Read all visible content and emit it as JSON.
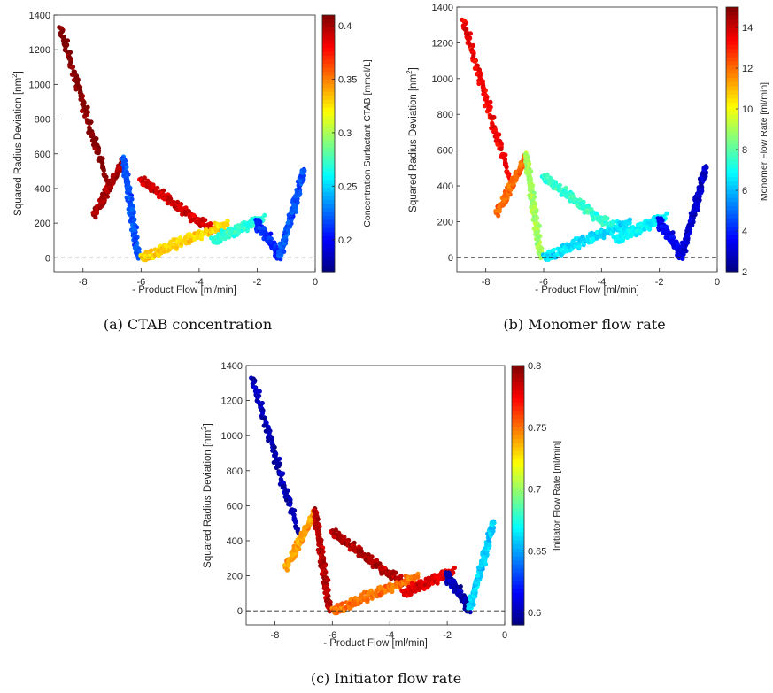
{
  "chart_data": [
    {
      "type": "scatter",
      "caption": "(a)  CTAB concentration",
      "xlabel": "- Product Flow [ml/min]",
      "ylabel": "Squared Radius Deviation [nm",
      "ylabel_sup": "2",
      "ylabel_close": "]",
      "xlim": [
        -9,
        0
      ],
      "ylim": [
        -80,
        1400
      ],
      "xticks": [
        -8,
        -6,
        -4,
        -2,
        0
      ],
      "yticks": [
        0,
        200,
        400,
        600,
        800,
        1000,
        1200,
        1400
      ],
      "reference_line": {
        "y": 0,
        "style": "dashed"
      },
      "colorbar": {
        "label": "Concentration Surfactant CTAB [mmol/L]",
        "range": [
          0.17,
          0.41
        ],
        "ticks": [
          0.2,
          0.25,
          0.3,
          0.35,
          0.4
        ]
      },
      "clusters": [
        {
          "region": "steep-left",
          "x": [
            -8.8,
            -7.2
          ],
          "y": [
            1330,
            450
          ],
          "color_value": 0.41
        },
        {
          "region": "left-blob",
          "x": [
            -7.6,
            -6.6
          ],
          "y": [
            250,
            560
          ],
          "color_value": 0.4
        },
        {
          "region": "spike-6.6",
          "x": [
            -6.6,
            -6.1
          ],
          "y": [
            570,
            0
          ],
          "color_value": 0.22
        },
        {
          "region": "mid-upper",
          "x": [
            -6.0,
            -3.5
          ],
          "y": [
            450,
            150
          ],
          "color_value": 0.39
        },
        {
          "region": "mid-lower",
          "x": [
            -6.0,
            -3.0
          ],
          "y": [
            0,
            200
          ],
          "color_value": 0.33
        },
        {
          "region": "right-band",
          "x": [
            -3.5,
            -1.8
          ],
          "y": [
            100,
            230
          ],
          "color_value": 0.27
        },
        {
          "region": "dip-1.3",
          "x": [
            -2.0,
            -1.2
          ],
          "y": [
            200,
            10
          ],
          "color_value": 0.21
        },
        {
          "region": "right-spike",
          "x": [
            -1.2,
            -0.4
          ],
          "y": [
            20,
            500
          ],
          "color_value": 0.22
        }
      ]
    },
    {
      "type": "scatter",
      "caption": "(b)  Monomer flow rate",
      "xlabel": "- Product Flow [ml/min]",
      "ylabel": "Squared Radius Deviation [nm",
      "ylabel_sup": "2",
      "ylabel_close": "]",
      "xlim": [
        -9,
        0
      ],
      "ylim": [
        -80,
        1400
      ],
      "xticks": [
        -8,
        -6,
        -4,
        -2,
        0
      ],
      "yticks": [
        0,
        200,
        400,
        600,
        800,
        1000,
        1200,
        1400
      ],
      "reference_line": {
        "y": 0,
        "style": "dashed"
      },
      "colorbar": {
        "label": "Monomer Flow Rate [ml/min]",
        "range": [
          2,
          15
        ],
        "ticks": [
          2,
          4,
          6,
          8,
          10,
          12,
          14
        ]
      },
      "clusters": [
        {
          "region": "steep-left",
          "x": [
            -8.8,
            -7.2
          ],
          "y": [
            1330,
            450
          ],
          "color_value": 13.5
        },
        {
          "region": "left-blob",
          "x": [
            -7.6,
            -6.6
          ],
          "y": [
            250,
            560
          ],
          "color_value": 12.0
        },
        {
          "region": "spike-6.6",
          "x": [
            -6.6,
            -6.1
          ],
          "y": [
            570,
            0
          ],
          "color_value": 9.0
        },
        {
          "region": "mid-upper",
          "x": [
            -6.0,
            -3.5
          ],
          "y": [
            450,
            150
          ],
          "color_value": 7.5
        },
        {
          "region": "mid-lower",
          "x": [
            -6.0,
            -3.0
          ],
          "y": [
            0,
            200
          ],
          "color_value": 6.5
        },
        {
          "region": "right-band",
          "x": [
            -3.5,
            -1.8
          ],
          "y": [
            100,
            230
          ],
          "color_value": 6.8
        },
        {
          "region": "dip-1.3",
          "x": [
            -2.0,
            -1.2
          ],
          "y": [
            200,
            10
          ],
          "color_value": 3.5
        },
        {
          "region": "right-spike",
          "x": [
            -1.2,
            -0.4
          ],
          "y": [
            20,
            500
          ],
          "color_value": 3.0
        }
      ]
    },
    {
      "type": "scatter",
      "caption": "(c)  Initiator flow rate",
      "xlabel": "- Product Flow [ml/min]",
      "ylabel": "Squared Radius Deviation [nm",
      "ylabel_sup": "2",
      "ylabel_close": "]",
      "xlim": [
        -9,
        0
      ],
      "ylim": [
        -80,
        1400
      ],
      "xticks": [
        -8,
        -6,
        -4,
        -2,
        0
      ],
      "yticks": [
        0,
        200,
        400,
        600,
        800,
        1000,
        1200,
        1400
      ],
      "reference_line": {
        "y": 0,
        "style": "dashed"
      },
      "colorbar": {
        "label": "Initiator Flow Rate [ml/min]",
        "range": [
          0.59,
          0.8
        ],
        "ticks": [
          0.6,
          0.65,
          0.7,
          0.75,
          0.8
        ]
      },
      "clusters": [
        {
          "region": "steep-left",
          "x": [
            -8.8,
            -7.2
          ],
          "y": [
            1330,
            450
          ],
          "color_value": 0.6
        },
        {
          "region": "left-blob",
          "x": [
            -7.6,
            -6.6
          ],
          "y": [
            250,
            560
          ],
          "color_value": 0.74
        },
        {
          "region": "spike-6.6",
          "x": [
            -6.6,
            -6.1
          ],
          "y": [
            570,
            0
          ],
          "color_value": 0.79
        },
        {
          "region": "mid-upper",
          "x": [
            -6.0,
            -3.5
          ],
          "y": [
            450,
            150
          ],
          "color_value": 0.79
        },
        {
          "region": "mid-lower",
          "x": [
            -6.0,
            -3.0
          ],
          "y": [
            0,
            200
          ],
          "color_value": 0.75
        },
        {
          "region": "right-band",
          "x": [
            -3.5,
            -1.8
          ],
          "y": [
            100,
            230
          ],
          "color_value": 0.78
        },
        {
          "region": "dip-1.3",
          "x": [
            -2.0,
            -1.2
          ],
          "y": [
            200,
            10
          ],
          "color_value": 0.6
        },
        {
          "region": "right-spike",
          "x": [
            -1.2,
            -0.4
          ],
          "y": [
            20,
            500
          ],
          "color_value": 0.66
        }
      ]
    }
  ]
}
